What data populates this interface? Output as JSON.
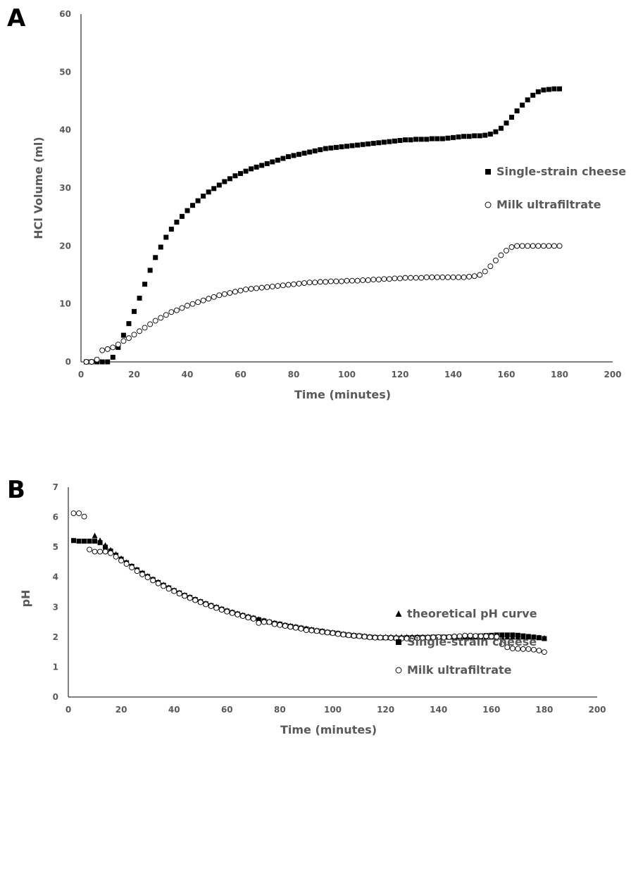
{
  "figure": {
    "panel_a_label": "A",
    "panel_b_label": "B"
  },
  "chart_data": [
    {
      "type": "scatter",
      "panel": "A",
      "title": "",
      "xlabel": "Time (minutes)",
      "ylabel": "HCl Volume  (ml)",
      "xlim": [
        0,
        200
      ],
      "ylim": [
        0,
        60
      ],
      "xticks": [
        "0",
        "20",
        "40",
        "60",
        "80",
        "100",
        "120",
        "140",
        "160",
        "180",
        "200"
      ],
      "yticks": [
        "0",
        "10",
        "20",
        "30",
        "40",
        "50",
        "60"
      ],
      "grid": false,
      "legend_position": "right",
      "series": [
        {
          "name": "Single-strain cheese",
          "marker": "filled-square",
          "x": [
            2,
            4,
            6,
            8,
            10,
            12,
            14,
            16,
            18,
            20,
            22,
            24,
            26,
            28,
            30,
            32,
            34,
            36,
            38,
            40,
            42,
            44,
            46,
            48,
            50,
            52,
            54,
            56,
            58,
            60,
            62,
            64,
            66,
            68,
            70,
            72,
            74,
            76,
            78,
            80,
            82,
            84,
            86,
            88,
            90,
            92,
            94,
            96,
            98,
            100,
            102,
            104,
            106,
            108,
            110,
            112,
            114,
            116,
            118,
            120,
            122,
            124,
            126,
            128,
            130,
            132,
            134,
            136,
            138,
            140,
            142,
            144,
            146,
            148,
            150,
            152,
            154,
            156,
            158,
            160,
            162,
            164,
            166,
            168,
            170,
            172,
            174,
            176,
            178,
            180
          ],
          "y": [
            0,
            0,
            0,
            0,
            0,
            0.8,
            2.5,
            4.6,
            6.6,
            8.7,
            11,
            13.4,
            15.8,
            18,
            19.8,
            21.5,
            22.9,
            24.1,
            25.1,
            26.1,
            27,
            27.8,
            28.6,
            29.3,
            29.9,
            30.5,
            31.1,
            31.6,
            32.1,
            32.5,
            32.9,
            33.3,
            33.6,
            33.9,
            34.2,
            34.5,
            34.8,
            35.1,
            35.4,
            35.6,
            35.8,
            36,
            36.2,
            36.4,
            36.6,
            36.8,
            36.9,
            37,
            37.1,
            37.2,
            37.3,
            37.4,
            37.5,
            37.6,
            37.7,
            37.8,
            37.9,
            38,
            38.1,
            38.2,
            38.3,
            38.3,
            38.4,
            38.4,
            38.4,
            38.5,
            38.5,
            38.5,
            38.6,
            38.7,
            38.8,
            38.9,
            38.9,
            39,
            39,
            39.1,
            39.3,
            39.7,
            40.3,
            41.2,
            42.2,
            43.3,
            44.3,
            45.2,
            46,
            46.6,
            46.9,
            47,
            47.1,
            47.1
          ]
        },
        {
          "name": "Milk ultrafiltrate",
          "marker": "open-circle",
          "x": [
            2,
            4,
            6,
            8,
            10,
            12,
            14,
            16,
            18,
            20,
            22,
            24,
            26,
            28,
            30,
            32,
            34,
            36,
            38,
            40,
            42,
            44,
            46,
            48,
            50,
            52,
            54,
            56,
            58,
            60,
            62,
            64,
            66,
            68,
            70,
            72,
            74,
            76,
            78,
            80,
            82,
            84,
            86,
            88,
            90,
            92,
            94,
            96,
            98,
            100,
            102,
            104,
            106,
            108,
            110,
            112,
            114,
            116,
            118,
            120,
            122,
            124,
            126,
            128,
            130,
            132,
            134,
            136,
            138,
            140,
            142,
            144,
            146,
            148,
            150,
            152,
            154,
            156,
            158,
            160,
            162,
            164,
            166,
            168,
            170,
            172,
            174,
            176,
            178,
            180
          ],
          "y": [
            0,
            0,
            0.4,
            2,
            2.2,
            2.5,
            3,
            3.6,
            4.1,
            4.7,
            5.3,
            5.9,
            6.5,
            7.1,
            7.6,
            8.1,
            8.6,
            8.9,
            9.3,
            9.7,
            10,
            10.3,
            10.6,
            10.9,
            11.2,
            11.5,
            11.7,
            11.9,
            12.1,
            12.3,
            12.5,
            12.6,
            12.7,
            12.8,
            12.9,
            13,
            13.1,
            13.2,
            13.3,
            13.4,
            13.5,
            13.6,
            13.7,
            13.7,
            13.8,
            13.8,
            13.9,
            13.9,
            13.9,
            14,
            14,
            14,
            14.1,
            14.1,
            14.2,
            14.2,
            14.3,
            14.3,
            14.4,
            14.4,
            14.5,
            14.5,
            14.5,
            14.5,
            14.6,
            14.6,
            14.6,
            14.6,
            14.6,
            14.6,
            14.6,
            14.6,
            14.7,
            14.8,
            15,
            15.6,
            16.5,
            17.5,
            18.4,
            19.2,
            19.8,
            20,
            20,
            20,
            20,
            20,
            20,
            20,
            20,
            20
          ]
        }
      ]
    },
    {
      "type": "scatter",
      "panel": "B",
      "title": "",
      "xlabel": "Time (minutes)",
      "ylabel": "pH",
      "xlim": [
        0,
        200
      ],
      "ylim": [
        0,
        7
      ],
      "xticks": [
        "0",
        "20",
        "40",
        "60",
        "80",
        "100",
        "120",
        "140",
        "160",
        "180",
        "200"
      ],
      "yticks": [
        "0",
        "1",
        "2",
        "3",
        "4",
        "5",
        "6",
        "7"
      ],
      "grid": false,
      "legend_position": "right",
      "series": [
        {
          "name": "theoretical pH curve",
          "marker": "filled-triangle",
          "x": [
            10,
            12,
            14,
            16,
            18,
            20,
            22,
            24,
            26,
            28,
            30,
            32,
            34,
            36,
            38,
            40,
            42,
            44,
            46,
            48,
            50,
            52,
            54,
            56,
            58,
            60,
            62,
            64,
            66,
            68,
            70,
            72,
            74,
            76,
            78,
            80,
            82,
            84,
            86,
            88,
            90,
            92,
            94,
            96,
            98,
            100,
            102,
            104,
            106,
            108,
            110,
            112,
            114,
            116,
            118,
            120,
            122,
            124,
            126,
            128,
            130,
            132,
            134,
            136,
            138,
            140,
            142,
            144,
            146,
            148,
            150,
            152,
            154,
            156,
            158,
            160,
            162,
            164,
            166,
            168,
            170,
            172,
            174,
            176,
            178,
            180
          ],
          "y": [
            5.38,
            5.22,
            5.06,
            4.9,
            4.76,
            4.62,
            4.49,
            4.37,
            4.25,
            4.14,
            4.03,
            3.93,
            3.83,
            3.74,
            3.65,
            3.56,
            3.48,
            3.4,
            3.33,
            3.26,
            3.19,
            3.12,
            3.06,
            3,
            2.94,
            2.88,
            2.83,
            2.78,
            2.73,
            2.68,
            2.64,
            2.59,
            2.55,
            2.51,
            2.47,
            2.44,
            2.4,
            2.37,
            2.34,
            2.31,
            2.28,
            2.25,
            2.22,
            2.2,
            2.17,
            2.15,
            2.13,
            2.1,
            2.08,
            2.06,
            2.05,
            2.03,
            2.01,
            2,
            2,
            2,
            2,
            2,
            2,
            2,
            2,
            2,
            2,
            2,
            2,
            2,
            2,
            2,
            2,
            2,
            2,
            2,
            2,
            2,
            2,
            2,
            2,
            2,
            2,
            2,
            2,
            2,
            2,
            2,
            1.98,
            1.96
          ]
        },
        {
          "name": "Single-strain cheese",
          "marker": "filled-square",
          "x": [
            2,
            4,
            6,
            8,
            10,
            12,
            14,
            16,
            18,
            20,
            22,
            24,
            26,
            28,
            30,
            32,
            34,
            36,
            38,
            40,
            42,
            44,
            46,
            48,
            50,
            52,
            54,
            56,
            58,
            60,
            62,
            64,
            66,
            68,
            70,
            72,
            74,
            76,
            78,
            80,
            82,
            84,
            86,
            88,
            90,
            92,
            94,
            96,
            98,
            100,
            102,
            104,
            106,
            108,
            110,
            112,
            114,
            116,
            118,
            120,
            122,
            124,
            126,
            128,
            130,
            132,
            134,
            136,
            138,
            140,
            142,
            144,
            146,
            148,
            150,
            152,
            154,
            156,
            158,
            160,
            162,
            164,
            166,
            168,
            170,
            172,
            174,
            176,
            178,
            180
          ],
          "y": [
            5.22,
            5.2,
            5.2,
            5.2,
            5.2,
            5.15,
            5,
            4.87,
            4.73,
            4.6,
            4.48,
            4.36,
            4.24,
            4.13,
            4.02,
            3.92,
            3.82,
            3.73,
            3.64,
            3.55,
            3.47,
            3.39,
            3.32,
            3.25,
            3.18,
            3.11,
            3.05,
            2.99,
            2.93,
            2.87,
            2.82,
            2.77,
            2.72,
            2.67,
            2.63,
            2.58,
            2.54,
            2.5,
            2.46,
            2.43,
            2.39,
            2.36,
            2.33,
            2.3,
            2.27,
            2.24,
            2.21,
            2.19,
            2.16,
            2.14,
            2.12,
            2.09,
            2.07,
            2.05,
            2.04,
            2.02,
            2,
            1.99,
            1.98,
            1.98,
            1.98,
            1.97,
            1.97,
            1.98,
            1.98,
            1.99,
            1.99,
            1.99,
            2,
            2,
            2,
            2,
            2,
            2,
            2.01,
            2.02,
            2.03,
            2.04,
            2.05,
            2.06,
            2.07,
            2.07,
            2.07,
            2.07,
            2.06,
            2.04,
            2.02,
            2,
            1.98,
            1.95
          ]
        },
        {
          "name": "Milk ultrafiltrate",
          "marker": "open-circle",
          "x": [
            2,
            4,
            6,
            8,
            10,
            12,
            14,
            16,
            18,
            20,
            22,
            24,
            26,
            28,
            30,
            32,
            34,
            36,
            38,
            40,
            42,
            44,
            46,
            48,
            50,
            52,
            54,
            56,
            58,
            60,
            62,
            64,
            66,
            68,
            70,
            72,
            74,
            76,
            78,
            80,
            82,
            84,
            86,
            88,
            90,
            92,
            94,
            96,
            98,
            100,
            102,
            104,
            106,
            108,
            110,
            112,
            114,
            116,
            118,
            120,
            122,
            124,
            126,
            128,
            130,
            132,
            134,
            136,
            138,
            140,
            142,
            144,
            146,
            148,
            150,
            152,
            154,
            156,
            158,
            160,
            162,
            164,
            166,
            168,
            170,
            172,
            174,
            176,
            178,
            180
          ],
          "y": [
            6.13,
            6.13,
            6.02,
            4.92,
            4.85,
            4.85,
            4.85,
            4.8,
            4.68,
            4.55,
            4.44,
            4.32,
            4.2,
            4.09,
            3.99,
            3.89,
            3.79,
            3.7,
            3.61,
            3.53,
            3.45,
            3.37,
            3.3,
            3.23,
            3.16,
            3.09,
            3.03,
            2.97,
            2.91,
            2.85,
            2.8,
            2.75,
            2.7,
            2.65,
            2.61,
            2.47,
            2.5,
            2.5,
            2.43,
            2.4,
            2.37,
            2.34,
            2.31,
            2.28,
            2.23,
            2.22,
            2.2,
            2.17,
            2.15,
            2.13,
            2.1,
            2.08,
            2.06,
            2.04,
            2.03,
            2.01,
            1.99,
            1.98,
            1.98,
            1.98,
            1.97,
            1.96,
            1.95,
            1.95,
            1.95,
            1.96,
            1.97,
            1.98,
            1.99,
            2,
            1.99,
            2,
            2.02,
            2.03,
            2.05,
            2.05,
            2.04,
            2.03,
            2.03,
            2.02,
            2.01,
            1.76,
            1.66,
            1.62,
            1.61,
            1.6,
            1.6,
            1.58,
            1.55,
            1.5
          ]
        }
      ]
    }
  ]
}
